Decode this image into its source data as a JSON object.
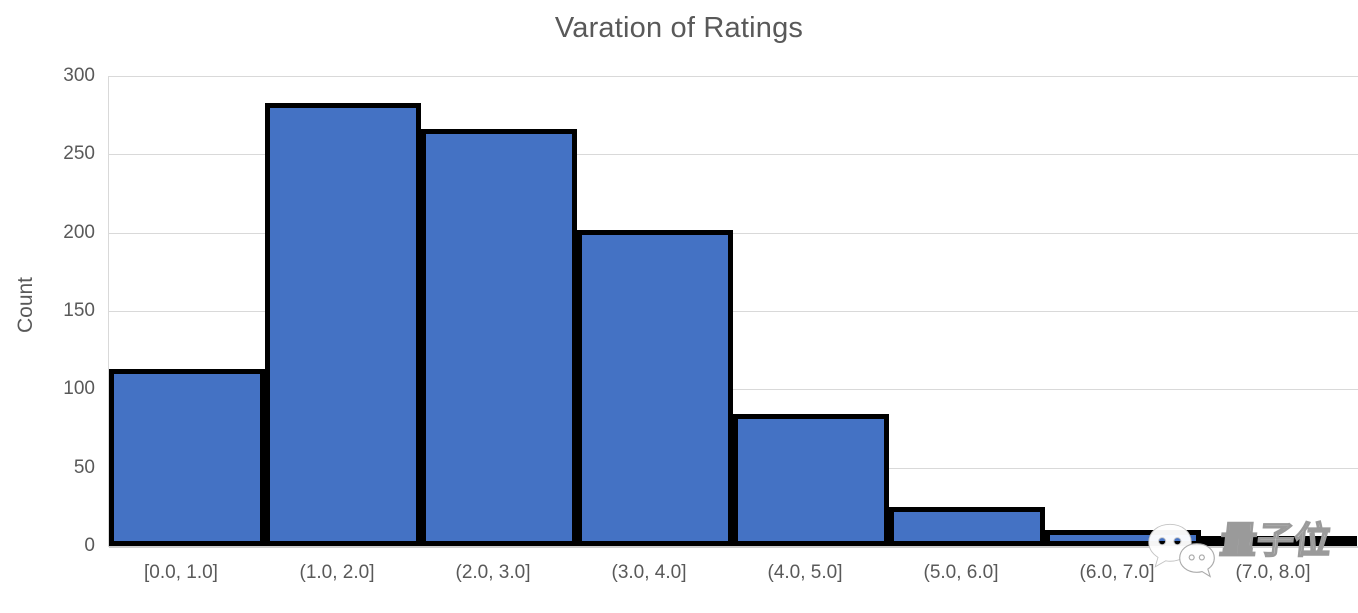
{
  "chart_data": {
    "type": "bar",
    "subtype": "histogram",
    "title": "Varation of Ratings",
    "xlabel": "",
    "ylabel": "Count",
    "categories": [
      "[0.0, 1.0]",
      "(1.0, 2.0]",
      "(2.0, 3.0]",
      "(3.0, 4.0]",
      "(4.0, 5.0]",
      "(5.0, 6.0]",
      "(6.0, 7.0]",
      "(7.0, 8.0]"
    ],
    "values": [
      113,
      283,
      266,
      202,
      84,
      25,
      10,
      3
    ],
    "ylim": [
      0,
      300
    ],
    "yticks": [
      0,
      50,
      100,
      150,
      200,
      250,
      300
    ],
    "grid": "horizontal",
    "legend": "none",
    "colors": {
      "bar_fill": "#4472C4",
      "bar_border": "#000000",
      "gridline": "#D9D9D9",
      "axis_text": "#595959",
      "background": "#FFFFFF"
    }
  },
  "watermark": {
    "label": "量子位",
    "icon": "wechat-chat-bubbles-icon"
  }
}
